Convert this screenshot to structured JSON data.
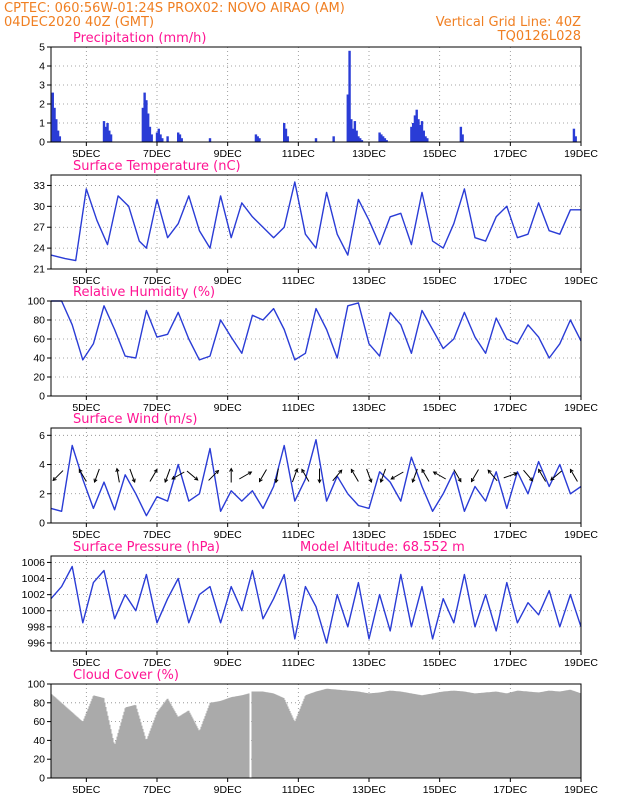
{
  "header": {
    "line1": "CPTEC:   060:56W-01:24S   PROX02: NOVO AIRAO (AM)",
    "line2_left": "04DEC2020 40Z (GMT)",
    "line2_right": "Vertical Grid Line: 40Z",
    "line3_right": "TQ0126L028"
  },
  "colors": {
    "header": "#f07f22",
    "title": "#ff1493",
    "line": "#2a3cd6",
    "bar": "#2a3cd6",
    "cloud": "#aaaaaa"
  },
  "x_ticks": [
    "5DEC",
    "7DEC",
    "9DEC",
    "11DEC",
    "13DEC",
    "15DEC",
    "17DEC",
    "19DEC"
  ],
  "x_range_days": [
    4.0,
    19.0
  ],
  "chart_data": [
    {
      "id": "precip",
      "type": "bar",
      "title": "Precipitation (mm/h)",
      "ylim": [
        0,
        5
      ],
      "yticks": [
        0,
        1,
        2,
        3,
        4,
        5
      ],
      "color": "#2a3cd6",
      "x": [
        4.05,
        4.1,
        4.15,
        4.2,
        4.25,
        5.5,
        5.55,
        5.6,
        5.65,
        5.7,
        6.6,
        6.65,
        6.7,
        6.75,
        6.8,
        6.85,
        7.0,
        7.05,
        7.1,
        7.15,
        7.3,
        7.6,
        7.65,
        7.7,
        8.5,
        9.8,
        9.85,
        9.9,
        10.6,
        10.65,
        10.7,
        11.5,
        12.0,
        12.4,
        12.45,
        12.5,
        12.55,
        12.6,
        12.65,
        12.7,
        12.75,
        12.8,
        13.3,
        13.35,
        13.4,
        13.45,
        13.5,
        14.2,
        14.25,
        14.3,
        14.35,
        14.4,
        14.45,
        14.5,
        14.55,
        14.6,
        14.65,
        15.6,
        15.65,
        18.8,
        18.85
      ],
      "values": [
        2.6,
        1.8,
        1.2,
        0.6,
        0.3,
        1.1,
        0.8,
        1.0,
        0.6,
        0.4,
        1.8,
        2.6,
        2.2,
        1.5,
        0.8,
        0.4,
        0.5,
        0.7,
        0.4,
        0.2,
        0.3,
        0.5,
        0.4,
        0.2,
        0.2,
        0.4,
        0.3,
        0.2,
        1.0,
        0.7,
        0.3,
        0.2,
        0.3,
        2.5,
        4.8,
        1.2,
        0.7,
        1.1,
        0.6,
        0.3,
        0.2,
        0.1,
        0.5,
        0.4,
        0.3,
        0.2,
        0.1,
        0.8,
        1.0,
        1.4,
        1.7,
        1.2,
        0.9,
        1.1,
        0.6,
        0.3,
        0.2,
        0.8,
        0.4,
        0.7,
        0.3
      ]
    },
    {
      "id": "temp",
      "type": "line",
      "title": "Surface Temperature (nC)",
      "ylim": [
        21,
        34.5
      ],
      "yticks": [
        21,
        24,
        27,
        30,
        33
      ],
      "color": "#2a3cd6",
      "x": [
        4.0,
        4.4,
        4.7,
        5.0,
        5.3,
        5.6,
        5.9,
        6.2,
        6.5,
        6.7,
        7.0,
        7.3,
        7.6,
        7.9,
        8.2,
        8.5,
        8.8,
        9.1,
        9.4,
        9.7,
        10.0,
        10.3,
        10.6,
        10.9,
        11.2,
        11.5,
        11.8,
        12.1,
        12.4,
        12.7,
        13.0,
        13.3,
        13.6,
        13.9,
        14.2,
        14.5,
        14.8,
        15.1,
        15.4,
        15.7,
        16.0,
        16.3,
        16.6,
        16.9,
        17.2,
        17.5,
        17.8,
        18.1,
        18.4,
        18.7,
        19.0
      ],
      "values": [
        23.0,
        22.5,
        22.2,
        32.5,
        28.0,
        24.5,
        31.5,
        30.0,
        25.0,
        24.0,
        31.0,
        25.5,
        27.5,
        31.5,
        26.5,
        24.0,
        31.5,
        25.5,
        30.5,
        28.5,
        27.0,
        25.5,
        27.0,
        33.5,
        26.0,
        24.0,
        32.0,
        26.0,
        23.0,
        31.0,
        28.0,
        24.5,
        28.5,
        29.0,
        24.5,
        32.0,
        25.0,
        24.0,
        27.5,
        32.5,
        25.5,
        25.0,
        28.5,
        30.0,
        25.5,
        26.0,
        30.5,
        26.5,
        26.0,
        29.5,
        29.5
      ]
    },
    {
      "id": "rh",
      "type": "line",
      "title": "Relative Humidity (%)",
      "ylim": [
        0,
        100
      ],
      "yticks": [
        0,
        20,
        40,
        60,
        80,
        100
      ],
      "color": "#2a3cd6",
      "x": [
        4.0,
        4.3,
        4.6,
        4.9,
        5.2,
        5.5,
        5.8,
        6.1,
        6.4,
        6.7,
        7.0,
        7.3,
        7.6,
        7.9,
        8.2,
        8.5,
        8.8,
        9.1,
        9.4,
        9.7,
        10.0,
        10.3,
        10.6,
        10.9,
        11.2,
        11.5,
        11.8,
        12.1,
        12.4,
        12.7,
        13.0,
        13.3,
        13.6,
        13.9,
        14.2,
        14.5,
        14.8,
        15.1,
        15.4,
        15.7,
        16.0,
        16.3,
        16.6,
        16.9,
        17.2,
        17.5,
        17.8,
        18.1,
        18.4,
        18.7,
        19.0
      ],
      "values": [
        100,
        100,
        75,
        38,
        55,
        95,
        70,
        42,
        40,
        90,
        62,
        65,
        88,
        60,
        38,
        42,
        80,
        62,
        45,
        85,
        80,
        92,
        70,
        38,
        45,
        92,
        70,
        40,
        95,
        98,
        55,
        42,
        88,
        75,
        45,
        90,
        70,
        50,
        60,
        88,
        62,
        45,
        82,
        60,
        55,
        75,
        62,
        40,
        55,
        80,
        58
      ]
    },
    {
      "id": "wind",
      "type": "line",
      "title": "Surface Wind (m/s)",
      "ylim": [
        0,
        6.5
      ],
      "yticks": [
        0,
        2,
        4,
        6
      ],
      "color": "#2a3cd6",
      "x": [
        4.0,
        4.3,
        4.6,
        4.9,
        5.2,
        5.5,
        5.8,
        6.1,
        6.4,
        6.7,
        7.0,
        7.3,
        7.6,
        7.9,
        8.2,
        8.5,
        8.8,
        9.1,
        9.4,
        9.7,
        10.0,
        10.3,
        10.6,
        10.9,
        11.2,
        11.5,
        11.8,
        12.1,
        12.4,
        12.7,
        13.0,
        13.3,
        13.6,
        13.9,
        14.2,
        14.5,
        14.8,
        15.1,
        15.4,
        15.7,
        16.0,
        16.3,
        16.6,
        16.9,
        17.2,
        17.5,
        17.8,
        18.1,
        18.4,
        18.7,
        19.0
      ],
      "values": [
        1.0,
        0.8,
        5.3,
        3.0,
        1.0,
        2.8,
        0.9,
        3.3,
        2.0,
        0.5,
        1.8,
        1.5,
        4.0,
        1.5,
        2.0,
        5.1,
        0.8,
        2.2,
        1.5,
        2.2,
        1.0,
        2.5,
        5.3,
        1.5,
        3.0,
        5.7,
        1.5,
        3.2,
        2.0,
        1.2,
        1.0,
        3.5,
        2.8,
        1.5,
        4.5,
        2.5,
        0.8,
        2.0,
        3.5,
        0.8,
        2.5,
        1.5,
        3.5,
        1.0,
        3.5,
        2.0,
        4.2,
        2.5,
        4.0,
        2.0,
        2.5
      ],
      "arrows_x": [
        4.2,
        4.9,
        5.3,
        5.9,
        6.3,
        6.9,
        7.3,
        7.6,
        8.0,
        8.6,
        9.1,
        9.5,
        10.0,
        10.4,
        10.9,
        11.2,
        11.6,
        12.1,
        12.6,
        13.0,
        13.4,
        13.8,
        14.3,
        14.6,
        15.0,
        15.5,
        16.0,
        16.5,
        17.0,
        17.5,
        17.9,
        18.3,
        18.8
      ],
      "arrows_dir": [
        225,
        330,
        200,
        350,
        160,
        30,
        200,
        240,
        130,
        45,
        0,
        60,
        210,
        190,
        20,
        330,
        180,
        40,
        330,
        160,
        200,
        240,
        200,
        330,
        300,
        150,
        210,
        320,
        70,
        140,
        330,
        230,
        330
      ]
    },
    {
      "id": "pressure",
      "type": "line",
      "title": "Surface Pressure (hPa)",
      "annotation": "Model Altitude: 68.552 m",
      "ylim": [
        995,
        1006.8
      ],
      "yticks": [
        996,
        998,
        1000,
        1002,
        1004,
        1006
      ],
      "color": "#2a3cd6",
      "x": [
        4.0,
        4.3,
        4.6,
        4.9,
        5.2,
        5.5,
        5.8,
        6.1,
        6.4,
        6.7,
        7.0,
        7.3,
        7.6,
        7.9,
        8.2,
        8.5,
        8.8,
        9.1,
        9.4,
        9.7,
        10.0,
        10.3,
        10.6,
        10.9,
        11.2,
        11.5,
        11.8,
        12.1,
        12.4,
        12.7,
        13.0,
        13.3,
        13.6,
        13.9,
        14.2,
        14.5,
        14.8,
        15.1,
        15.4,
        15.7,
        16.0,
        16.3,
        16.6,
        16.9,
        17.2,
        17.5,
        17.8,
        18.1,
        18.4,
        18.7,
        19.0
      ],
      "values": [
        1001.5,
        1003.0,
        1005.5,
        998.5,
        1003.5,
        1005.0,
        999.0,
        1002.0,
        1000.0,
        1004.5,
        998.5,
        1001.5,
        1004.0,
        998.5,
        1002.0,
        1003.0,
        998.5,
        1003.0,
        1000.0,
        1005.0,
        999.0,
        1001.5,
        1004.5,
        996.5,
        1003.0,
        1000.5,
        996.0,
        1002.0,
        998.0,
        1003.5,
        996.5,
        1002.0,
        997.5,
        1004.5,
        998.0,
        1003.0,
        996.5,
        1001.5,
        998.5,
        1004.5,
        998.0,
        1002.0,
        997.5,
        1003.5,
        998.5,
        1001.0,
        999.5,
        1002.5,
        998.0,
        1002.0,
        998.0
      ]
    },
    {
      "id": "cloud",
      "type": "area",
      "title": "Cloud Cover (%)",
      "ylim": [
        0,
        100
      ],
      "yticks": [
        0,
        20,
        40,
        60,
        80,
        100
      ],
      "color": "#aaaaaa",
      "x": [
        4.0,
        4.3,
        4.6,
        4.9,
        5.2,
        5.5,
        5.8,
        6.1,
        6.4,
        6.7,
        7.0,
        7.3,
        7.6,
        7.9,
        8.2,
        8.5,
        8.8,
        9.1,
        9.4,
        9.6,
        9.65,
        9.7,
        10.0,
        10.3,
        10.6,
        10.9,
        11.2,
        11.5,
        11.8,
        12.1,
        12.4,
        12.7,
        13.0,
        13.3,
        13.6,
        13.9,
        14.2,
        14.5,
        14.8,
        15.1,
        15.4,
        15.7,
        16.0,
        16.3,
        16.6,
        16.9,
        17.2,
        17.5,
        17.8,
        18.1,
        18.4,
        18.7,
        19.0
      ],
      "values": [
        90,
        80,
        70,
        60,
        88,
        85,
        35,
        75,
        78,
        40,
        70,
        85,
        65,
        72,
        50,
        80,
        82,
        86,
        88,
        90,
        0,
        92,
        92,
        90,
        85,
        60,
        88,
        92,
        95,
        94,
        93,
        92,
        90,
        91,
        93,
        92,
        90,
        88,
        90,
        92,
        93,
        92,
        90,
        91,
        92,
        90,
        93,
        92,
        91,
        93,
        92,
        94,
        90
      ]
    }
  ]
}
